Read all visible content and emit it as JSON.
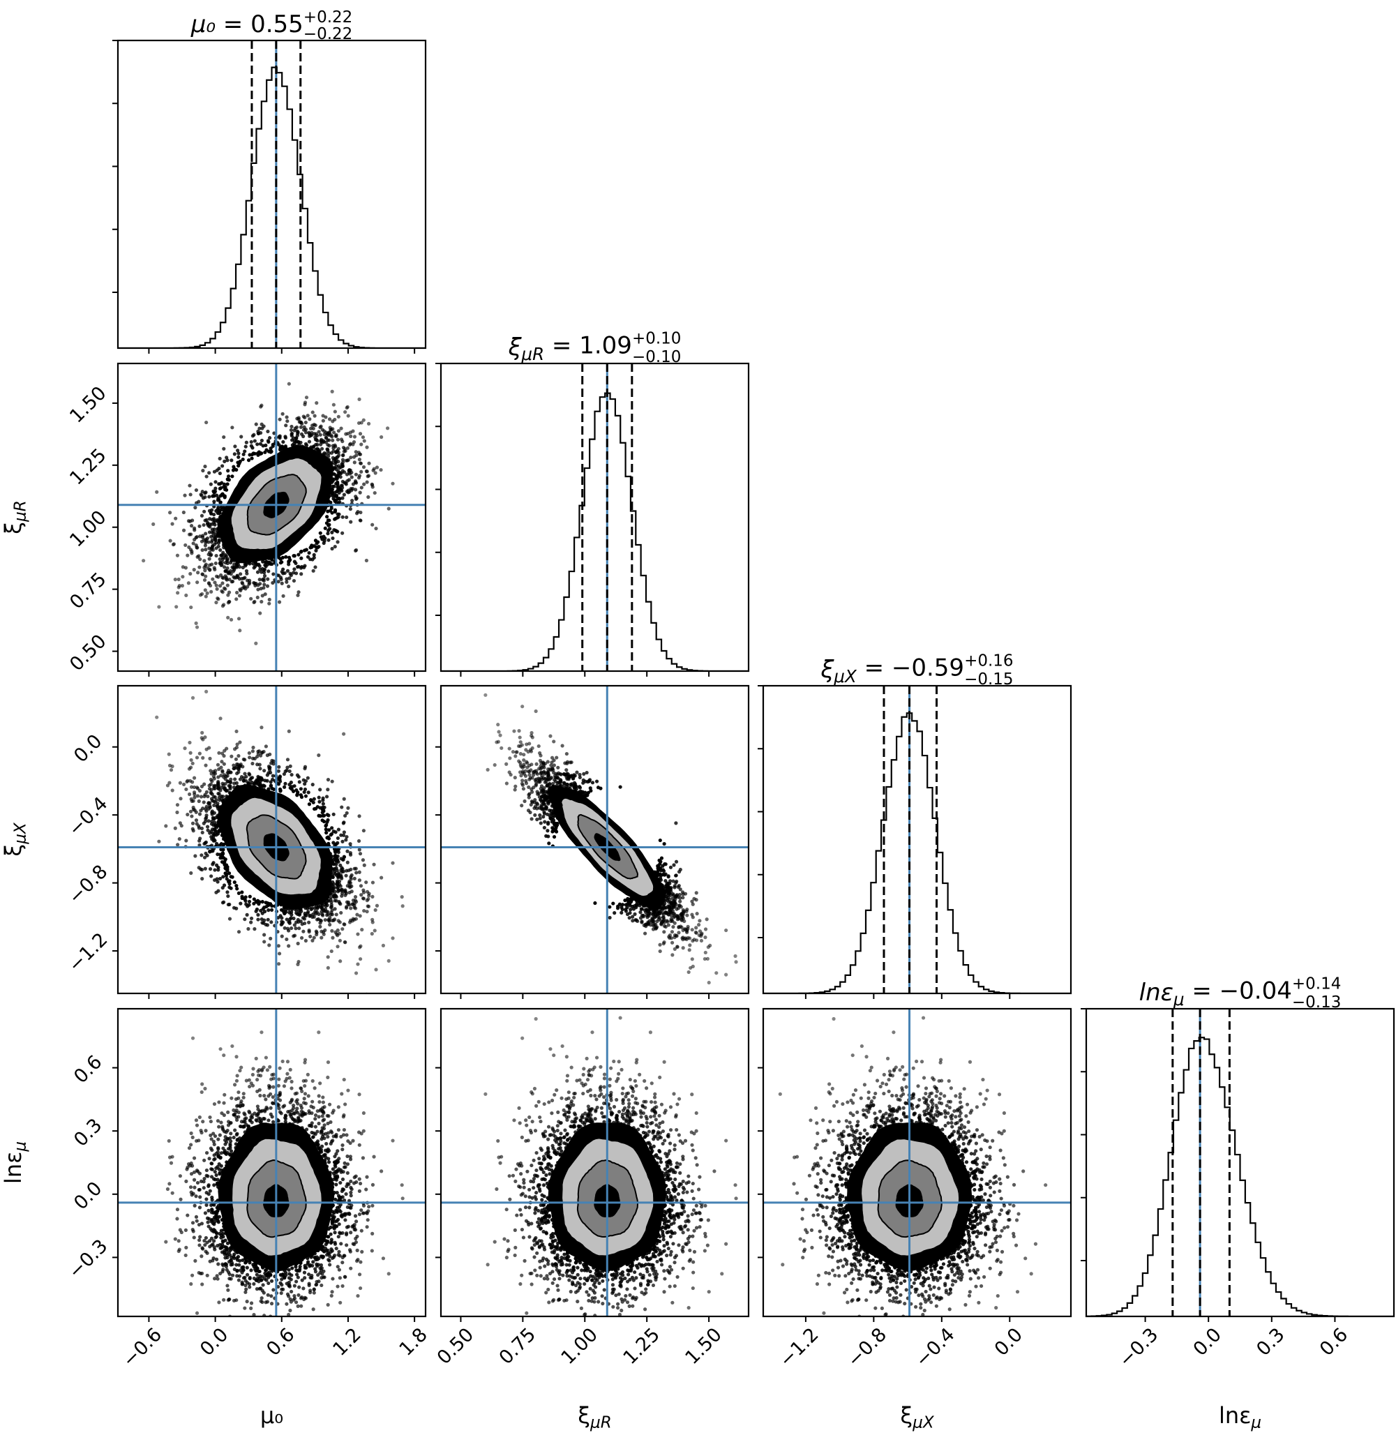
{
  "chart_data": {
    "type": "corner",
    "colors": {
      "truth": "#4682b4",
      "histogram": "#000000",
      "level_1": "#000000",
      "level_2": "#7f7f7f",
      "level_3": "#bfbfbf",
      "level_4": "#ffffff"
    },
    "parameters": [
      {
        "key": "mu0",
        "label": "μ₀",
        "truth": 0.55,
        "median": 0.55,
        "q16": 0.33,
        "q84": 0.77,
        "range": [
          -0.88,
          1.9
        ],
        "ticks": [
          -0.6,
          0.0,
          0.6,
          1.2,
          1.8
        ],
        "tick_labels": [
          "−0.6",
          "0.0",
          "0.6",
          "1.2",
          "1.8"
        ],
        "sigma": 0.22
      },
      {
        "key": "xi_muR",
        "label": "ξ_μR",
        "truth": 1.09,
        "median": 1.09,
        "q16": 0.99,
        "q84": 1.19,
        "range": [
          0.42,
          1.66
        ],
        "ticks": [
          0.5,
          0.75,
          1.0,
          1.25,
          1.5
        ],
        "tick_labels": [
          "0.50",
          "0.75",
          "1.00",
          "1.25",
          "1.50"
        ],
        "sigma": 0.1
      },
      {
        "key": "xi_muX",
        "label": "ξ_μX",
        "truth": -0.59,
        "median": -0.59,
        "q16": -0.74,
        "q84": -0.43,
        "range": [
          -1.45,
          0.36
        ],
        "ticks": [
          -1.2,
          -0.8,
          -0.4,
          0.0
        ],
        "tick_labels": [
          "−1.2",
          "−0.8",
          "−0.4",
          "0.0"
        ],
        "sigma": 0.155
      },
      {
        "key": "ln_eps_mu",
        "label": "lnε_μ",
        "truth": -0.04,
        "median": -0.04,
        "q16": -0.17,
        "q84": 0.1,
        "range": [
          -0.58,
          0.88
        ],
        "ticks": [
          -0.3,
          0.0,
          0.3,
          0.6
        ],
        "tick_labels": [
          "−0.3",
          "0.0",
          "0.3",
          "0.6"
        ],
        "sigma": 0.135
      }
    ],
    "titles": [
      {
        "name": "μ₀",
        "value": "0.55",
        "plus": "+0.22",
        "minus": "−0.22"
      },
      {
        "name": "ξ_μR",
        "value": "1.09",
        "plus": "+0.10",
        "minus": "−0.10"
      },
      {
        "name": "ξ_μX",
        "value": "−0.59",
        "plus": "+0.16",
        "minus": "−0.15"
      },
      {
        "name": "lnε_μ",
        "value": "−0.04",
        "plus": "+0.14",
        "minus": "−0.13"
      }
    ],
    "correlations": {
      "mu0_xi_muR": 0.45,
      "mu0_xi_muX": -0.45,
      "xi_muR_xi_muX": -0.85,
      "mu0_ln_eps_mu": 0.0,
      "xi_muR_ln_eps_mu": 0.0,
      "xi_muX_ln_eps_mu": 0.0
    },
    "grid": false,
    "legend": "none"
  }
}
